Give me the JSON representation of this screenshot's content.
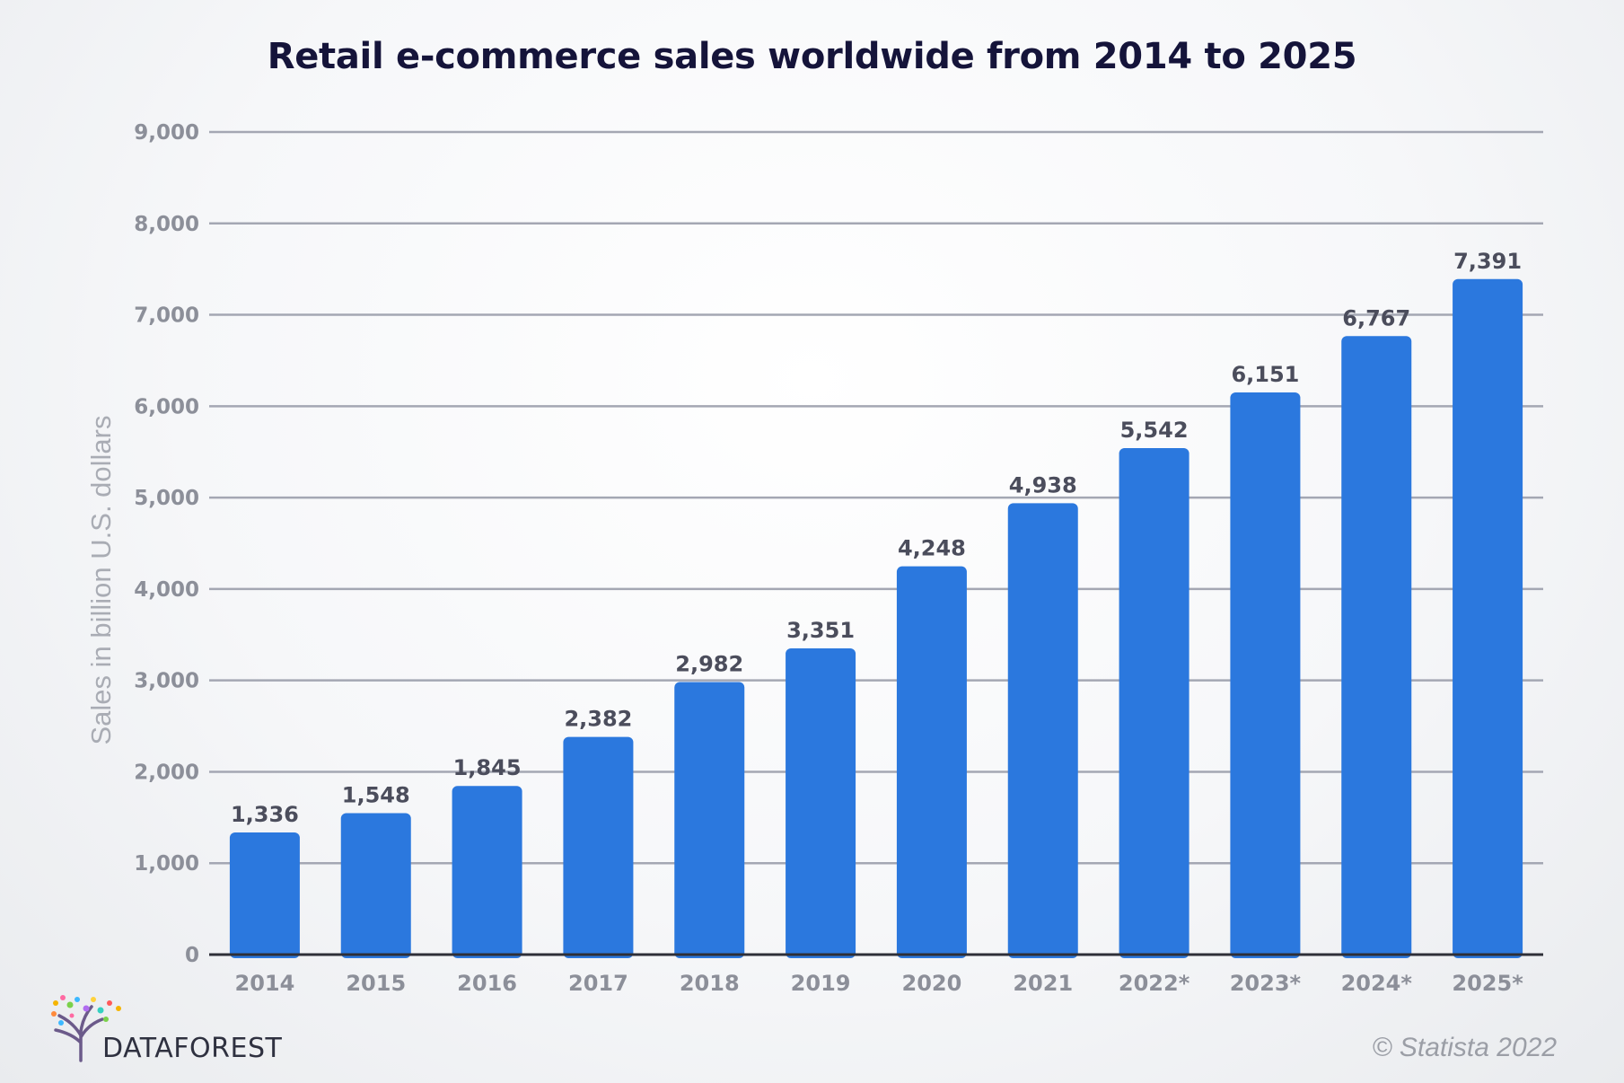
{
  "chart_data": {
    "type": "bar",
    "title": "Retail e-commerce sales worldwide from 2014 to 2025",
    "xlabel": "",
    "ylabel": "Sales in billion U.S. dollars",
    "categories": [
      "2014",
      "2015",
      "2016",
      "2017",
      "2018",
      "2019",
      "2020",
      "2021",
      "2022*",
      "2023*",
      "2024*",
      "2025*"
    ],
    "values": [
      1336,
      1548,
      1845,
      2382,
      2982,
      3351,
      4248,
      4938,
      5542,
      6151,
      6767,
      7391
    ],
    "value_labels": [
      "1,336",
      "1,548",
      "1,845",
      "2,382",
      "2,982",
      "3,351",
      "4,248",
      "4,938",
      "5,542",
      "6,151",
      "6,767",
      "7,391"
    ],
    "ylim": [
      0,
      9000
    ],
    "yticks": [
      0,
      1000,
      2000,
      3000,
      4000,
      5000,
      6000,
      7000,
      8000,
      9000
    ],
    "ytick_labels": [
      "0",
      "1,000",
      "2,000",
      "3,000",
      "4,000",
      "5,000",
      "6,000",
      "7,000",
      "8,000",
      "9,000"
    ],
    "grid": true,
    "legend": "none",
    "bar_color": "#2b78de",
    "grid_color": "#a4a7b3",
    "axis_color": "#2e2f38"
  },
  "branding": {
    "logo_text": "DATAFOREST",
    "source": "© Statista 2022"
  }
}
